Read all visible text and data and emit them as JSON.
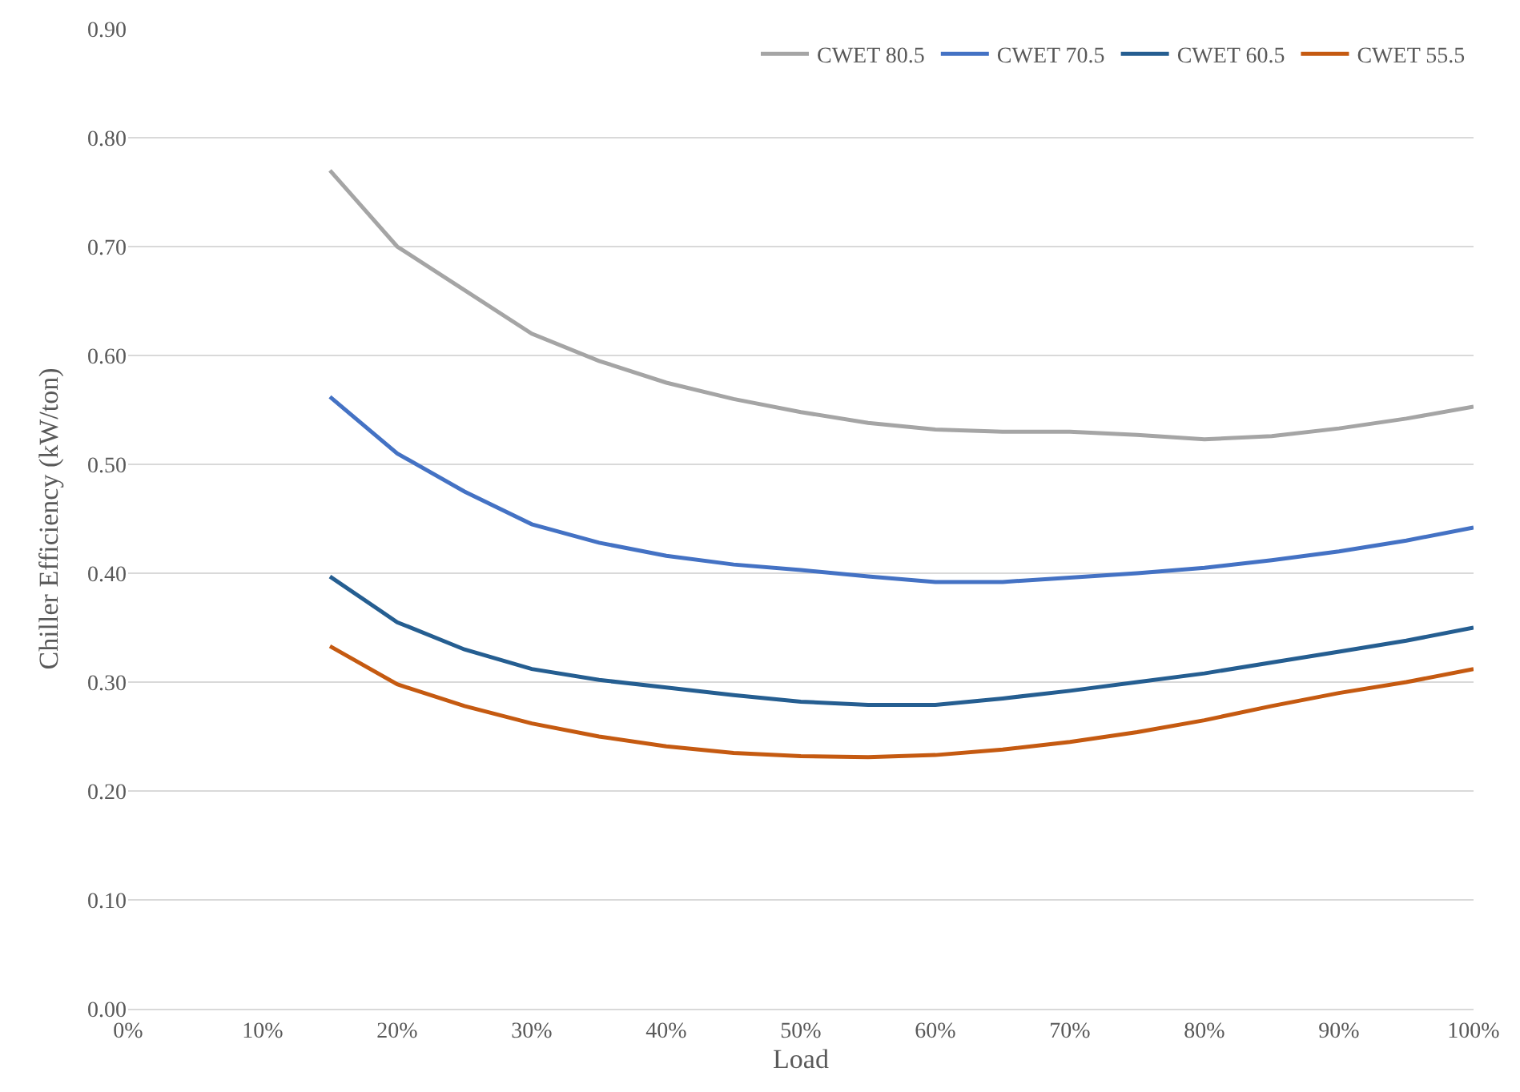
{
  "chart_data": {
    "type": "line",
    "xlabel": "Load",
    "ylabel": "Chiller Efficiency (kW/ton)",
    "x": [
      15,
      20,
      25,
      30,
      35,
      40,
      45,
      50,
      55,
      60,
      65,
      70,
      75,
      80,
      85,
      90,
      95,
      100
    ],
    "series": [
      {
        "name": "CWET 80.5",
        "color": "#a5a5a5",
        "values": [
          0.77,
          0.7,
          0.66,
          0.62,
          0.595,
          0.575,
          0.56,
          0.548,
          0.538,
          0.532,
          0.53,
          0.53,
          0.527,
          0.523,
          0.526,
          0.533,
          0.542,
          0.553
        ]
      },
      {
        "name": "CWET 70.5",
        "color": "#4472c4",
        "values": [
          0.562,
          0.51,
          0.475,
          0.445,
          0.428,
          0.416,
          0.408,
          0.403,
          0.397,
          0.392,
          0.392,
          0.396,
          0.4,
          0.405,
          0.412,
          0.42,
          0.43,
          0.442
        ]
      },
      {
        "name": "CWET 60.5",
        "color": "#255e91",
        "values": [
          0.397,
          0.355,
          0.33,
          0.312,
          0.302,
          0.295,
          0.288,
          0.282,
          0.279,
          0.279,
          0.285,
          0.292,
          0.3,
          0.308,
          0.318,
          0.328,
          0.338,
          0.35
        ]
      },
      {
        "name": "CWET 55.5",
        "color": "#c55a11",
        "values": [
          0.333,
          0.298,
          0.278,
          0.262,
          0.25,
          0.241,
          0.235,
          0.232,
          0.231,
          0.233,
          0.238,
          0.245,
          0.254,
          0.265,
          0.278,
          0.29,
          0.3,
          0.312
        ]
      }
    ],
    "xlim": [
      0,
      100
    ],
    "xticks": [
      {
        "value": 0,
        "label": "0%"
      },
      {
        "value": 10,
        "label": "10%"
      },
      {
        "value": 20,
        "label": "20%"
      },
      {
        "value": 30,
        "label": "30%"
      },
      {
        "value": 40,
        "label": "40%"
      },
      {
        "value": 50,
        "label": "50%"
      },
      {
        "value": 60,
        "label": "60%"
      },
      {
        "value": 70,
        "label": "70%"
      },
      {
        "value": 80,
        "label": "80%"
      },
      {
        "value": 90,
        "label": "90%"
      },
      {
        "value": 100,
        "label": "100%"
      }
    ],
    "ylim": [
      0,
      0.9
    ],
    "yticks": [
      {
        "value": 0,
        "label": "0.00"
      },
      {
        "value": 0.1,
        "label": "0.10"
      },
      {
        "value": 0.2,
        "label": "0.20"
      },
      {
        "value": 0.3,
        "label": "0.30"
      },
      {
        "value": 0.4,
        "label": "0.40"
      },
      {
        "value": 0.5,
        "label": "0.50"
      },
      {
        "value": 0.6,
        "label": "0.60"
      },
      {
        "value": 0.7,
        "label": "0.70"
      },
      {
        "value": 0.8,
        "label": "0.80"
      },
      {
        "value": 0.9,
        "label": "0.90"
      }
    ],
    "grid": "y",
    "legend": "top right",
    "marker": "none",
    "line_style": "solid"
  }
}
